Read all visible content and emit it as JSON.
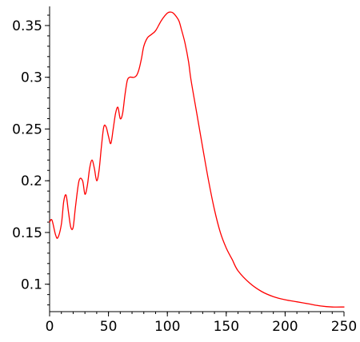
{
  "chart_data": {
    "type": "line",
    "title": "",
    "xlabel": "",
    "ylabel": "",
    "xlim": [
      0,
      250
    ],
    "ylim": [
      0.0735,
      0.3685
    ],
    "x_ticks": [
      {
        "value": 0,
        "label": "0"
      },
      {
        "value": 50,
        "label": "50"
      },
      {
        "value": 100,
        "label": "100"
      },
      {
        "value": 150,
        "label": "150"
      },
      {
        "value": 200,
        "label": "200"
      },
      {
        "value": 250,
        "label": "250"
      }
    ],
    "y_ticks": [
      {
        "value": 0.1,
        "label": "0.1"
      },
      {
        "value": 0.15,
        "label": "0.15"
      },
      {
        "value": 0.2,
        "label": "0.2"
      },
      {
        "value": 0.25,
        "label": "0.25"
      },
      {
        "value": 0.3,
        "label": "0.3"
      },
      {
        "value": 0.35,
        "label": "0.35"
      }
    ],
    "x_minor_step": 10,
    "y_minor_step": 0.01,
    "grid": false,
    "series": [
      {
        "color": "#ff0000",
        "x": [
          0,
          2,
          5,
          7,
          10,
          12,
          14,
          16,
          18,
          20,
          22,
          25,
          28,
          30,
          32,
          34,
          36,
          38,
          40,
          42,
          44,
          46,
          48,
          50,
          52,
          54,
          56,
          58,
          60,
          62,
          64,
          66,
          68,
          70,
          72,
          74,
          76,
          78,
          80,
          83,
          86,
          90,
          95,
          100,
          103,
          105,
          108,
          110,
          112,
          115,
          118,
          120,
          125,
          130,
          135,
          140,
          145,
          150,
          155,
          160,
          170,
          180,
          190,
          200,
          210,
          220,
          230,
          240,
          250
        ],
        "y": [
          0.16,
          0.162,
          0.148,
          0.145,
          0.158,
          0.18,
          0.186,
          0.17,
          0.155,
          0.155,
          0.175,
          0.2,
          0.2,
          0.187,
          0.195,
          0.212,
          0.22,
          0.212,
          0.2,
          0.21,
          0.233,
          0.252,
          0.252,
          0.243,
          0.236,
          0.25,
          0.265,
          0.271,
          0.26,
          0.265,
          0.283,
          0.297,
          0.3,
          0.3,
          0.3,
          0.302,
          0.308,
          0.318,
          0.33,
          0.338,
          0.341,
          0.345,
          0.355,
          0.362,
          0.363,
          0.362,
          0.358,
          0.354,
          0.346,
          0.333,
          0.315,
          0.298,
          0.265,
          0.232,
          0.2,
          0.172,
          0.15,
          0.135,
          0.124,
          0.113,
          0.101,
          0.093,
          0.088,
          0.085,
          0.083,
          0.081,
          0.079,
          0.078,
          0.078
        ]
      }
    ]
  }
}
